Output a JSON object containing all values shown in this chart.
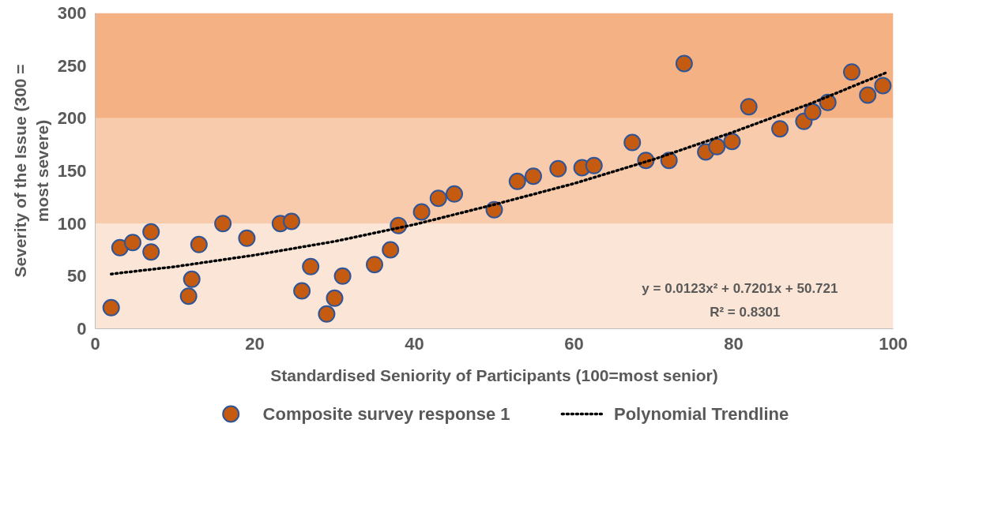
{
  "chart_data": {
    "type": "scatter",
    "xlabel": "Standardised Seniority of Participants (100=most senior)",
    "ylabel": "Severity of the Issue (300 = most severe)",
    "xlim": [
      0,
      100
    ],
    "xticks": [
      0,
      20,
      40,
      60,
      80,
      100
    ],
    "ylim": [
      0,
      300
    ],
    "yticks": [
      0,
      50,
      100,
      150,
      200,
      250,
      300
    ],
    "grid": false,
    "legend": "bottom",
    "bands": [
      {
        "axis": "y",
        "from": 0,
        "to": 100,
        "color": "#fbe5d6"
      },
      {
        "axis": "y",
        "from": 100,
        "to": 200,
        "color": "#f8cbad"
      },
      {
        "axis": "y",
        "from": 200,
        "to": 300,
        "color": "#f4b183"
      }
    ],
    "annotations": [
      "y = 0.0123x² + 0.7201x + 50.721",
      "R² = 0.8301"
    ],
    "series": [
      {
        "name": "Composite survey response 1",
        "marker": "circle",
        "color": "#c55a11",
        "x": [
          2,
          3.1,
          4.7,
          7,
          7,
          11.7,
          12.1,
          13,
          16,
          19,
          23.2,
          24.6,
          25.9,
          27,
          29,
          30,
          31,
          35,
          37,
          38,
          40.9,
          43,
          45,
          50,
          52.9,
          54.9,
          58,
          61,
          62.5,
          67.3,
          69,
          71.9,
          73.8,
          76.5,
          77.9,
          79.8,
          81.9,
          85.8,
          88.8,
          89.9,
          91.8,
          94.8,
          96.8,
          98.7
        ],
        "values": [
          20,
          77,
          82,
          92,
          73,
          31,
          47,
          80,
          100,
          86,
          100,
          102,
          36,
          59,
          14,
          29,
          50,
          61,
          75,
          98,
          111,
          124,
          128,
          113,
          140,
          145,
          152,
          153,
          155,
          177,
          160,
          160,
          252,
          168,
          173,
          178,
          211,
          190,
          197,
          206,
          215,
          244,
          222,
          231
        ]
      },
      {
        "name": "Polynomial Trendline",
        "type": "line",
        "line_style": "dotted",
        "color": "#000000",
        "x": [
          2,
          10,
          20,
          30,
          40,
          50,
          60,
          70,
          80,
          90,
          99
        ],
        "values": [
          52,
          59,
          70,
          83,
          99,
          118,
          138,
          161,
          187,
          215,
          243
        ]
      }
    ]
  }
}
